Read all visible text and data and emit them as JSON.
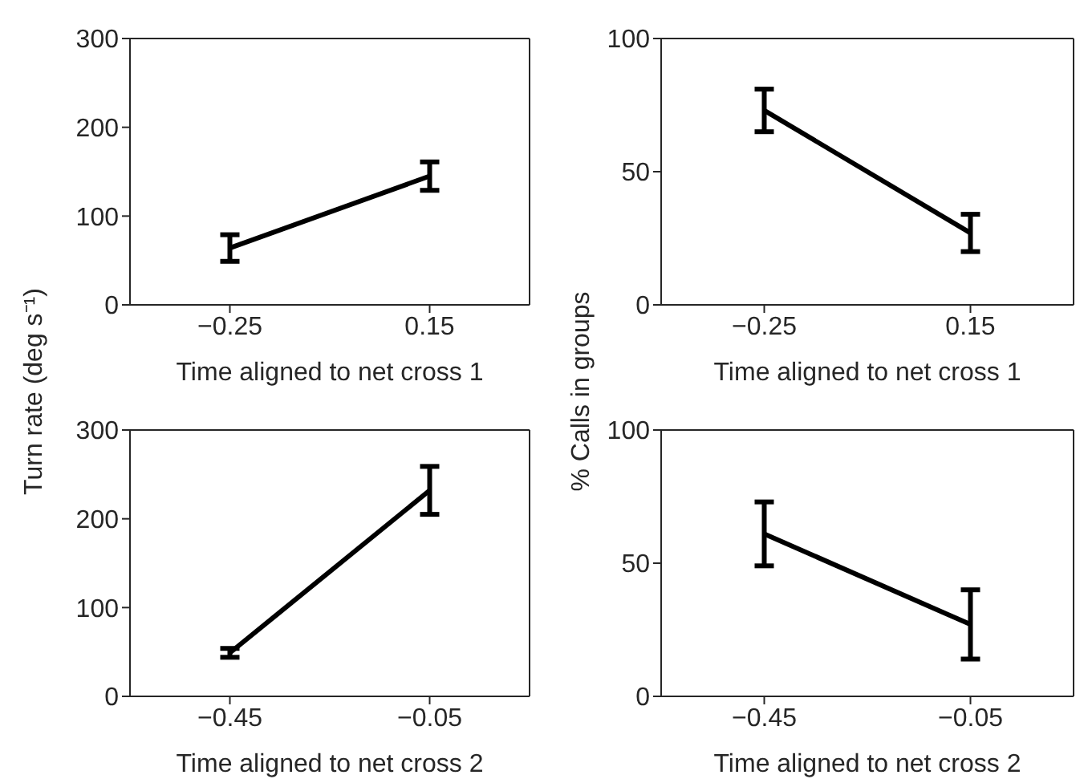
{
  "chart_data": [
    {
      "type": "line",
      "ylabel": "Turn rate (deg s⁻¹)",
      "xlabel": "Time aligned to net cross 1",
      "categories": [
        "−0.25",
        "0.15"
      ],
      "series": [
        {
          "color": "#000000",
          "values": [
            64,
            145
          ],
          "errors": [
            15,
            16
          ]
        }
      ],
      "ylim": [
        0,
        300
      ],
      "yticks": [
        0,
        100,
        200,
        300
      ],
      "grid": false,
      "marker": "none",
      "line_style": "solid"
    },
    {
      "type": "line",
      "ylabel": "% Calls in groups",
      "xlabel": "Time aligned to net cross 1",
      "categories": [
        "−0.25",
        "0.15"
      ],
      "series": [
        {
          "color": "#000000",
          "values": [
            73,
            27
          ],
          "errors": [
            8,
            7
          ]
        }
      ],
      "ylim": [
        0,
        100
      ],
      "yticks": [
        0,
        50,
        100
      ],
      "grid": false,
      "marker": "none",
      "line_style": "solid"
    },
    {
      "type": "line",
      "xlabel": "Time aligned to net cross 2",
      "categories": [
        "−0.45",
        "−0.05"
      ],
      "series": [
        {
          "color": "#000000",
          "values": [
            49,
            232
          ],
          "errors": [
            5,
            27
          ]
        }
      ],
      "ylim": [
        0,
        300
      ],
      "yticks": [
        0,
        100,
        200,
        300
      ],
      "grid": false,
      "marker": "none",
      "line_style": "solid"
    },
    {
      "type": "line",
      "xlabel": "Time aligned to net cross 2",
      "categories": [
        "−0.45",
        "−0.05"
      ],
      "series": [
        {
          "color": "#000000",
          "values": [
            61,
            27
          ],
          "errors": [
            12,
            13
          ]
        }
      ],
      "ylim": [
        0,
        100
      ],
      "yticks": [
        0,
        50,
        100
      ],
      "grid": false,
      "marker": "none",
      "line_style": "solid"
    }
  ]
}
